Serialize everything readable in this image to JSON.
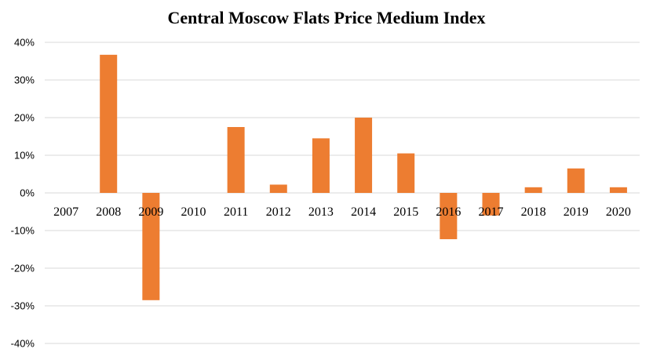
{
  "chart_data": {
    "type": "bar",
    "title": "Central Moscow Flats Price Medium Index",
    "xlabel": "",
    "ylabel": "",
    "categories": [
      "2007",
      "2008",
      "2009",
      "2010",
      "2011",
      "2012",
      "2013",
      "2014",
      "2015",
      "2016",
      "2017",
      "2018",
      "2019",
      "2020"
    ],
    "values": [
      0,
      36.7,
      -28.5,
      0,
      17.5,
      2.2,
      14.5,
      20,
      10.5,
      -12.3,
      -6,
      1.5,
      6.5,
      1.5
    ],
    "ylim": [
      -40,
      40
    ],
    "yticks": [
      40,
      30,
      20,
      10,
      0,
      -10,
      -20,
      -30,
      -40
    ],
    "ytick_labels": [
      "40%",
      "30%",
      "20%",
      "10%",
      "0%",
      "-10%",
      "-20%",
      "-30%",
      "-40%"
    ],
    "grid": true,
    "legend": "none",
    "bar_color": "#ED7D31"
  }
}
